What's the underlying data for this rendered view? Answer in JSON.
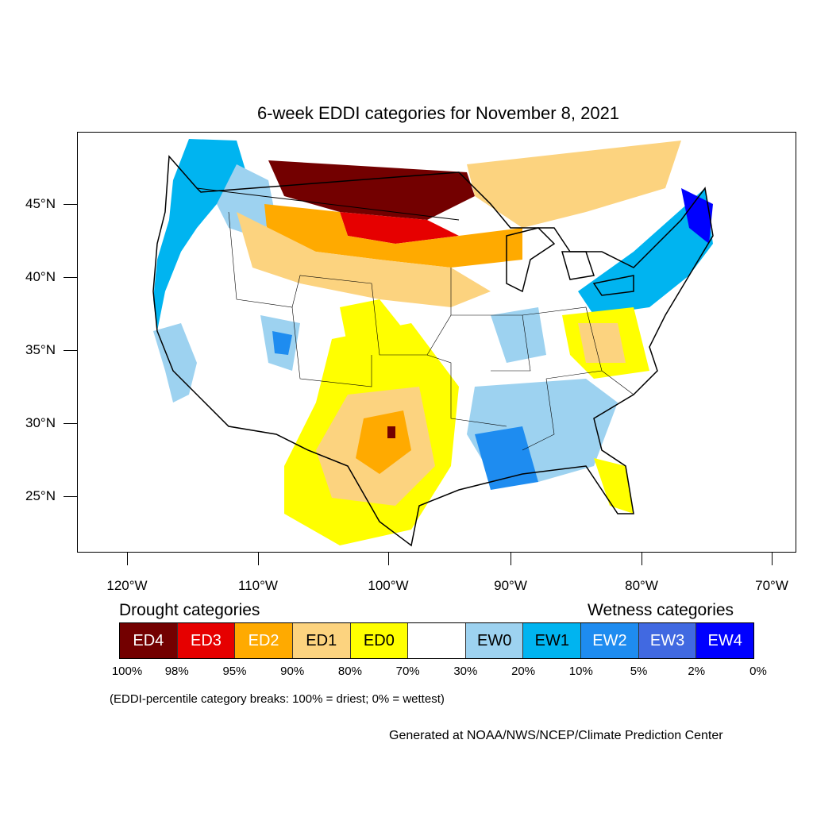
{
  "title": "6-week EDDI categories for November 8, 2021",
  "map": {
    "lat_labels": [
      "45°N",
      "40°N",
      "35°N",
      "30°N",
      "25°N"
    ],
    "lon_labels": [
      "120°W",
      "110°W",
      "100°W",
      "90°W",
      "80°W",
      "70°W"
    ]
  },
  "legend": {
    "drought_heading": "Drought categories",
    "wetness_heading": "Wetness categories",
    "categories": [
      {
        "label": "ED4",
        "color": "#730000",
        "text_color": "#ffffff"
      },
      {
        "label": "ED3",
        "color": "#e60000",
        "text_color": "#ffffff"
      },
      {
        "label": "ED2",
        "color": "#ffaa00",
        "text_color": "#ffffff"
      },
      {
        "label": "ED1",
        "color": "#fcd37f",
        "text_color": "#000000"
      },
      {
        "label": "ED0",
        "color": "#ffff00",
        "text_color": "#000000"
      },
      {
        "label": "",
        "color": "#ffffff",
        "text_color": "#000000"
      },
      {
        "label": "EW0",
        "color": "#9dd2f0",
        "text_color": "#000000"
      },
      {
        "label": "EW1",
        "color": "#00b4f0",
        "text_color": "#000000"
      },
      {
        "label": "EW2",
        "color": "#1e8cf0",
        "text_color": "#ffffff"
      },
      {
        "label": "EW3",
        "color": "#4169e1",
        "text_color": "#ffffff"
      },
      {
        "label": "EW4",
        "color": "#0000ff",
        "text_color": "#ffffff"
      }
    ],
    "breaks": [
      "100%",
      "98%",
      "95%",
      "90%",
      "80%",
      "70%",
      "30%",
      "20%",
      "10%",
      "5%",
      "2%",
      "0%"
    ]
  },
  "note": "(EDDI-percentile category breaks: 100% = driest; 0% = wettest)",
  "credit": "Generated at NOAA/NWS/NCEP/Climate Prediction Center"
}
